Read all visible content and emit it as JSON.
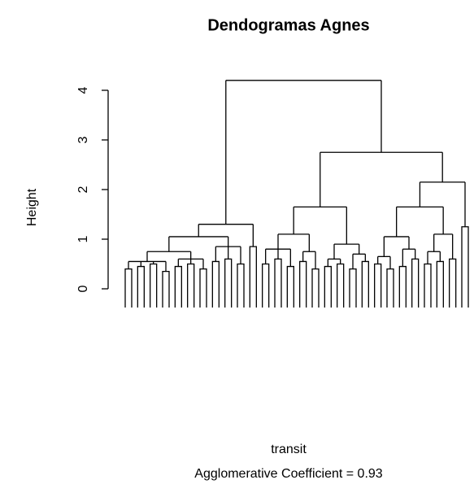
{
  "chart_data": {
    "type": "dendrogram",
    "title": "Dendogramas Agnes",
    "y_label": "Height",
    "x_label": "transit",
    "subtitle": "Agglomerative Coefficient =  0.93",
    "ylim": [
      0,
      4
    ],
    "yticks": [
      0,
      1,
      2,
      3,
      4
    ],
    "tree": {
      "height": 4.2,
      "children": [
        {
          "height": 1.3,
          "children": [
            {
              "height": 1.05,
              "children": [
                {
                  "height": 0.75,
                  "children": [
                    {
                      "height": 0.55,
                      "children": [
                        {
                          "height": 0.4
                        },
                        {
                          "height": 0.45
                        },
                        {
                          "height": 0.5
                        },
                        {
                          "height": 0.35
                        }
                      ]
                    },
                    {
                      "height": 0.6,
                      "children": [
                        {
                          "height": 0.45
                        },
                        {
                          "height": 0.5
                        },
                        {
                          "height": 0.4
                        }
                      ]
                    }
                  ]
                },
                {
                  "height": 0.85,
                  "children": [
                    {
                      "height": 0.55
                    },
                    {
                      "height": 0.6
                    },
                    {
                      "height": 0.5
                    }
                  ]
                }
              ]
            },
            {
              "height": 0.85
            }
          ]
        },
        {
          "height": 2.75,
          "children": [
            {
              "height": 1.65,
              "children": [
                {
                  "height": 1.1,
                  "children": [
                    {
                      "height": 0.8,
                      "children": [
                        {
                          "height": 0.5
                        },
                        {
                          "height": 0.6
                        },
                        {
                          "height": 0.45
                        }
                      ]
                    },
                    {
                      "height": 0.75,
                      "children": [
                        {
                          "height": 0.55
                        },
                        {
                          "height": 0.4
                        }
                      ]
                    }
                  ]
                },
                {
                  "height": 0.9,
                  "children": [
                    {
                      "height": 0.6,
                      "children": [
                        {
                          "height": 0.45
                        },
                        {
                          "height": 0.5
                        }
                      ]
                    },
                    {
                      "height": 0.7,
                      "children": [
                        {
                          "height": 0.4
                        },
                        {
                          "height": 0.55
                        }
                      ]
                    }
                  ]
                }
              ]
            },
            {
              "height": 2.15,
              "children": [
                {
                  "height": 1.65,
                  "children": [
                    {
                      "height": 1.05,
                      "children": [
                        {
                          "height": 0.65,
                          "children": [
                            {
                              "height": 0.5
                            },
                            {
                              "height": 0.4
                            }
                          ]
                        },
                        {
                          "height": 0.8,
                          "children": [
                            {
                              "height": 0.45
                            },
                            {
                              "height": 0.6
                            }
                          ]
                        }
                      ]
                    },
                    {
                      "height": 1.1,
                      "children": [
                        {
                          "height": 0.75,
                          "children": [
                            {
                              "height": 0.5
                            },
                            {
                              "height": 0.55
                            }
                          ]
                        },
                        {
                          "height": 0.6
                        }
                      ]
                    }
                  ]
                },
                {
                  "height": 1.25
                }
              ]
            }
          ]
        }
      ]
    }
  }
}
